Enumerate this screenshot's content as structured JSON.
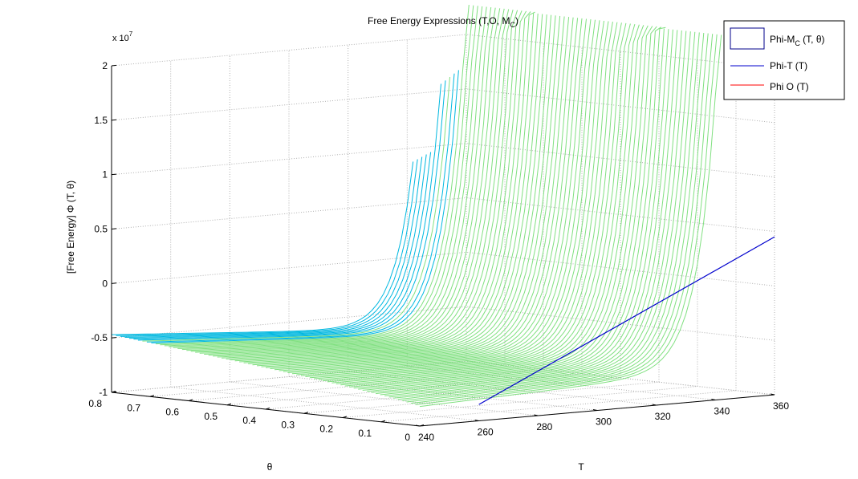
{
  "chart_data": {
    "type": "surface3d",
    "title": {
      "main": "Free Energy Expressions (T,O, M",
      "sub": "C",
      "close": ")"
    },
    "zlabel": "[Free Energy] Φ (T, θ)",
    "xlabel": "T",
    "ylabel": "θ",
    "zmultiplier": {
      "base": "x 10",
      "exp": "7"
    },
    "zticks": [
      "2",
      "1.5",
      "1",
      "0.5",
      "0",
      "-0.5",
      "-1"
    ],
    "zlim": [
      -1,
      2
    ],
    "thetaticks": [
      "0.8",
      "0.7",
      "0.6",
      "0.5",
      "0.4",
      "0.3",
      "0.2",
      "0.1",
      "0"
    ],
    "thetalim": [
      0,
      0.8
    ],
    "Tticks": [
      "240",
      "260",
      "280",
      "300",
      "320",
      "340",
      "360"
    ],
    "Tlim": [
      240,
      360
    ],
    "grid": true,
    "legend_position": "top-right",
    "legend": [
      {
        "label": "Phi-M",
        "sub": "C",
        "tail": " (T, θ)",
        "color": "#00008b",
        "marker": "box"
      },
      {
        "label": "Phi-T (T)",
        "color": "#0000cd",
        "marker": "line"
      },
      {
        "label": "Phi O (T)",
        "color": "#ff0000",
        "marker": "line"
      }
    ],
    "series": [
      {
        "name": "Phi-T (T)",
        "color": "#0000cd",
        "points": [
          [
            260,
            0,
            -0.85
          ],
          [
            360,
            0,
            0.45
          ]
        ]
      }
    ],
    "colors": {
      "surface_low": "#0000c8",
      "surface_mid": "#00b8e0",
      "surface_high": "#80e080",
      "grid": "#b0b0b0"
    }
  }
}
